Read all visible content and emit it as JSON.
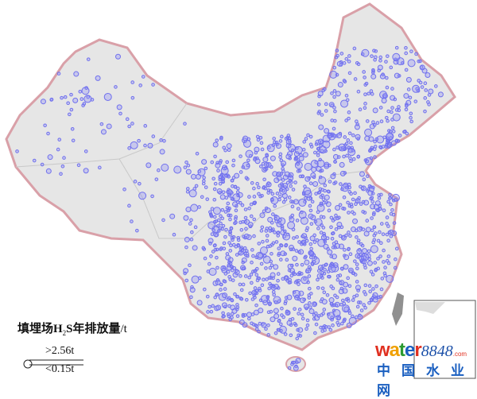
{
  "legend": {
    "title_prefix": "填埋场H",
    "title_sub": "2",
    "title_suffix": "S年排放量",
    "title_unit": "/t",
    "high_label": ">2.56t",
    "low_label": "<0.15t"
  },
  "watermark": {
    "brand": "water",
    "number": "8848",
    "domain": ".com",
    "chinese": "中国水业网"
  },
  "colors": {
    "land": "#e6e6e6",
    "border": "#d9a0a8",
    "point": "#7070ee",
    "taiwan": "#909090"
  },
  "map": {
    "region": "China",
    "layer": "landfill H2S annual emission points",
    "symbol": "circle scaled by emission",
    "inset": "South China Sea islands"
  }
}
